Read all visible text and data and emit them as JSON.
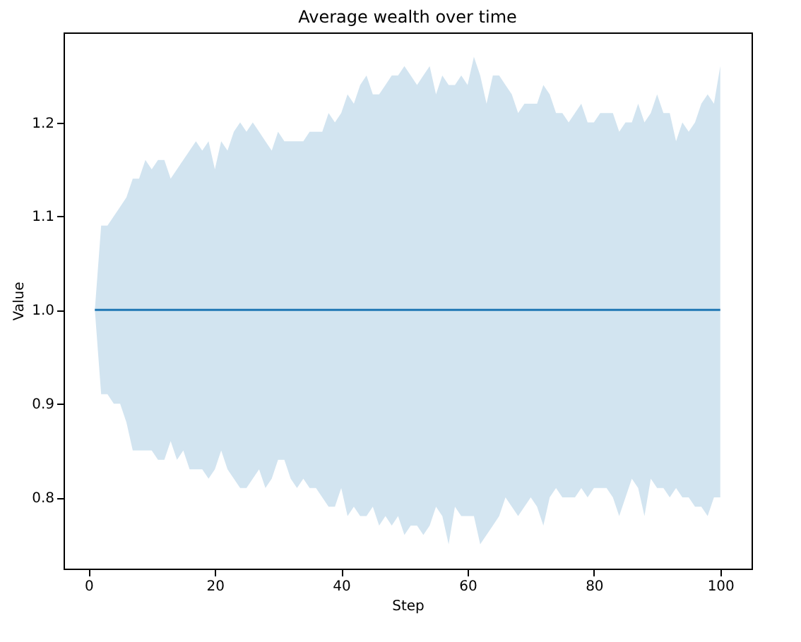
{
  "chart_data": {
    "type": "line",
    "title": "Average wealth over time",
    "xlabel": "Step",
    "ylabel": "Value",
    "x": [
      1,
      2,
      3,
      4,
      5,
      6,
      7,
      8,
      9,
      10,
      11,
      12,
      13,
      14,
      15,
      16,
      17,
      18,
      19,
      20,
      21,
      22,
      23,
      24,
      25,
      26,
      27,
      28,
      29,
      30,
      31,
      32,
      33,
      34,
      35,
      36,
      37,
      38,
      39,
      40,
      41,
      42,
      43,
      44,
      45,
      46,
      47,
      48,
      49,
      50,
      51,
      52,
      53,
      54,
      55,
      56,
      57,
      58,
      59,
      60,
      61,
      62,
      63,
      64,
      65,
      66,
      67,
      68,
      69,
      70,
      71,
      72,
      73,
      74,
      75,
      76,
      77,
      78,
      79,
      80,
      81,
      82,
      83,
      84,
      85,
      86,
      87,
      88,
      89,
      90,
      91,
      92,
      93,
      94,
      95,
      96,
      97,
      98,
      99,
      100
    ],
    "series": [
      {
        "color": "#1f77b4",
        "values": [
          1,
          1,
          1,
          1,
          1,
          1,
          1,
          1,
          1,
          1,
          1,
          1,
          1,
          1,
          1,
          1,
          1,
          1,
          1,
          1,
          1,
          1,
          1,
          1,
          1,
          1,
          1,
          1,
          1,
          1,
          1,
          1,
          1,
          1,
          1,
          1,
          1,
          1,
          1,
          1,
          1,
          1,
          1,
          1,
          1,
          1,
          1,
          1,
          1,
          1,
          1,
          1,
          1,
          1,
          1,
          1,
          1,
          1,
          1,
          1,
          1,
          1,
          1,
          1,
          1,
          1,
          1,
          1,
          1,
          1,
          1,
          1,
          1,
          1,
          1,
          1,
          1,
          1,
          1,
          1,
          1,
          1,
          1,
          1,
          1,
          1,
          1,
          1,
          1,
          1,
          1,
          1,
          1,
          1,
          1,
          1,
          1,
          1,
          1,
          1
        ],
        "upper": [
          1.0,
          1.09,
          1.09,
          1.1,
          1.11,
          1.12,
          1.14,
          1.14,
          1.16,
          1.15,
          1.16,
          1.16,
          1.14,
          1.15,
          1.16,
          1.17,
          1.18,
          1.17,
          1.18,
          1.15,
          1.18,
          1.17,
          1.19,
          1.2,
          1.19,
          1.2,
          1.19,
          1.18,
          1.17,
          1.19,
          1.18,
          1.18,
          1.18,
          1.18,
          1.19,
          1.19,
          1.19,
          1.21,
          1.2,
          1.21,
          1.23,
          1.22,
          1.24,
          1.25,
          1.23,
          1.23,
          1.24,
          1.25,
          1.25,
          1.26,
          1.25,
          1.24,
          1.25,
          1.26,
          1.23,
          1.25,
          1.24,
          1.24,
          1.25,
          1.24,
          1.27,
          1.25,
          1.22,
          1.25,
          1.25,
          1.24,
          1.23,
          1.21,
          1.22,
          1.22,
          1.22,
          1.24,
          1.23,
          1.21,
          1.21,
          1.2,
          1.21,
          1.22,
          1.2,
          1.2,
          1.21,
          1.21,
          1.21,
          1.19,
          1.2,
          1.2,
          1.22,
          1.2,
          1.21,
          1.23,
          1.21,
          1.21,
          1.18,
          1.2,
          1.19,
          1.2,
          1.22,
          1.23,
          1.22,
          1.26
        ],
        "lower": [
          1.0,
          0.91,
          0.91,
          0.9,
          0.9,
          0.88,
          0.85,
          0.85,
          0.85,
          0.85,
          0.84,
          0.84,
          0.86,
          0.84,
          0.85,
          0.83,
          0.83,
          0.83,
          0.82,
          0.83,
          0.85,
          0.83,
          0.82,
          0.81,
          0.81,
          0.82,
          0.83,
          0.81,
          0.82,
          0.84,
          0.84,
          0.82,
          0.81,
          0.82,
          0.81,
          0.81,
          0.8,
          0.79,
          0.79,
          0.81,
          0.78,
          0.79,
          0.78,
          0.78,
          0.79,
          0.77,
          0.78,
          0.77,
          0.78,
          0.76,
          0.77,
          0.77,
          0.76,
          0.77,
          0.79,
          0.78,
          0.75,
          0.79,
          0.78,
          0.78,
          0.78,
          0.75,
          0.76,
          0.77,
          0.78,
          0.8,
          0.79,
          0.78,
          0.79,
          0.8,
          0.79,
          0.77,
          0.8,
          0.81,
          0.8,
          0.8,
          0.8,
          0.81,
          0.8,
          0.81,
          0.81,
          0.81,
          0.8,
          0.78,
          0.8,
          0.82,
          0.81,
          0.78,
          0.82,
          0.81,
          0.81,
          0.8,
          0.81,
          0.8,
          0.8,
          0.79,
          0.79,
          0.78,
          0.8,
          0.8
        ]
      }
    ],
    "xlim": [
      -3.95,
      104.95
    ],
    "ylim": [
      0.724,
      1.296
    ],
    "xticks": [
      0,
      20,
      40,
      60,
      80,
      100
    ],
    "yticks": [
      {
        "value": 0.8,
        "label": "0.8"
      },
      {
        "value": 0.9,
        "label": "0.9"
      },
      {
        "value": 1,
        "label": "1.0"
      },
      {
        "value": 1.1,
        "label": "1.1"
      },
      {
        "value": 1.2,
        "label": "1.2"
      }
    ],
    "grid": false,
    "marker": "none",
    "line_style": "solid"
  }
}
